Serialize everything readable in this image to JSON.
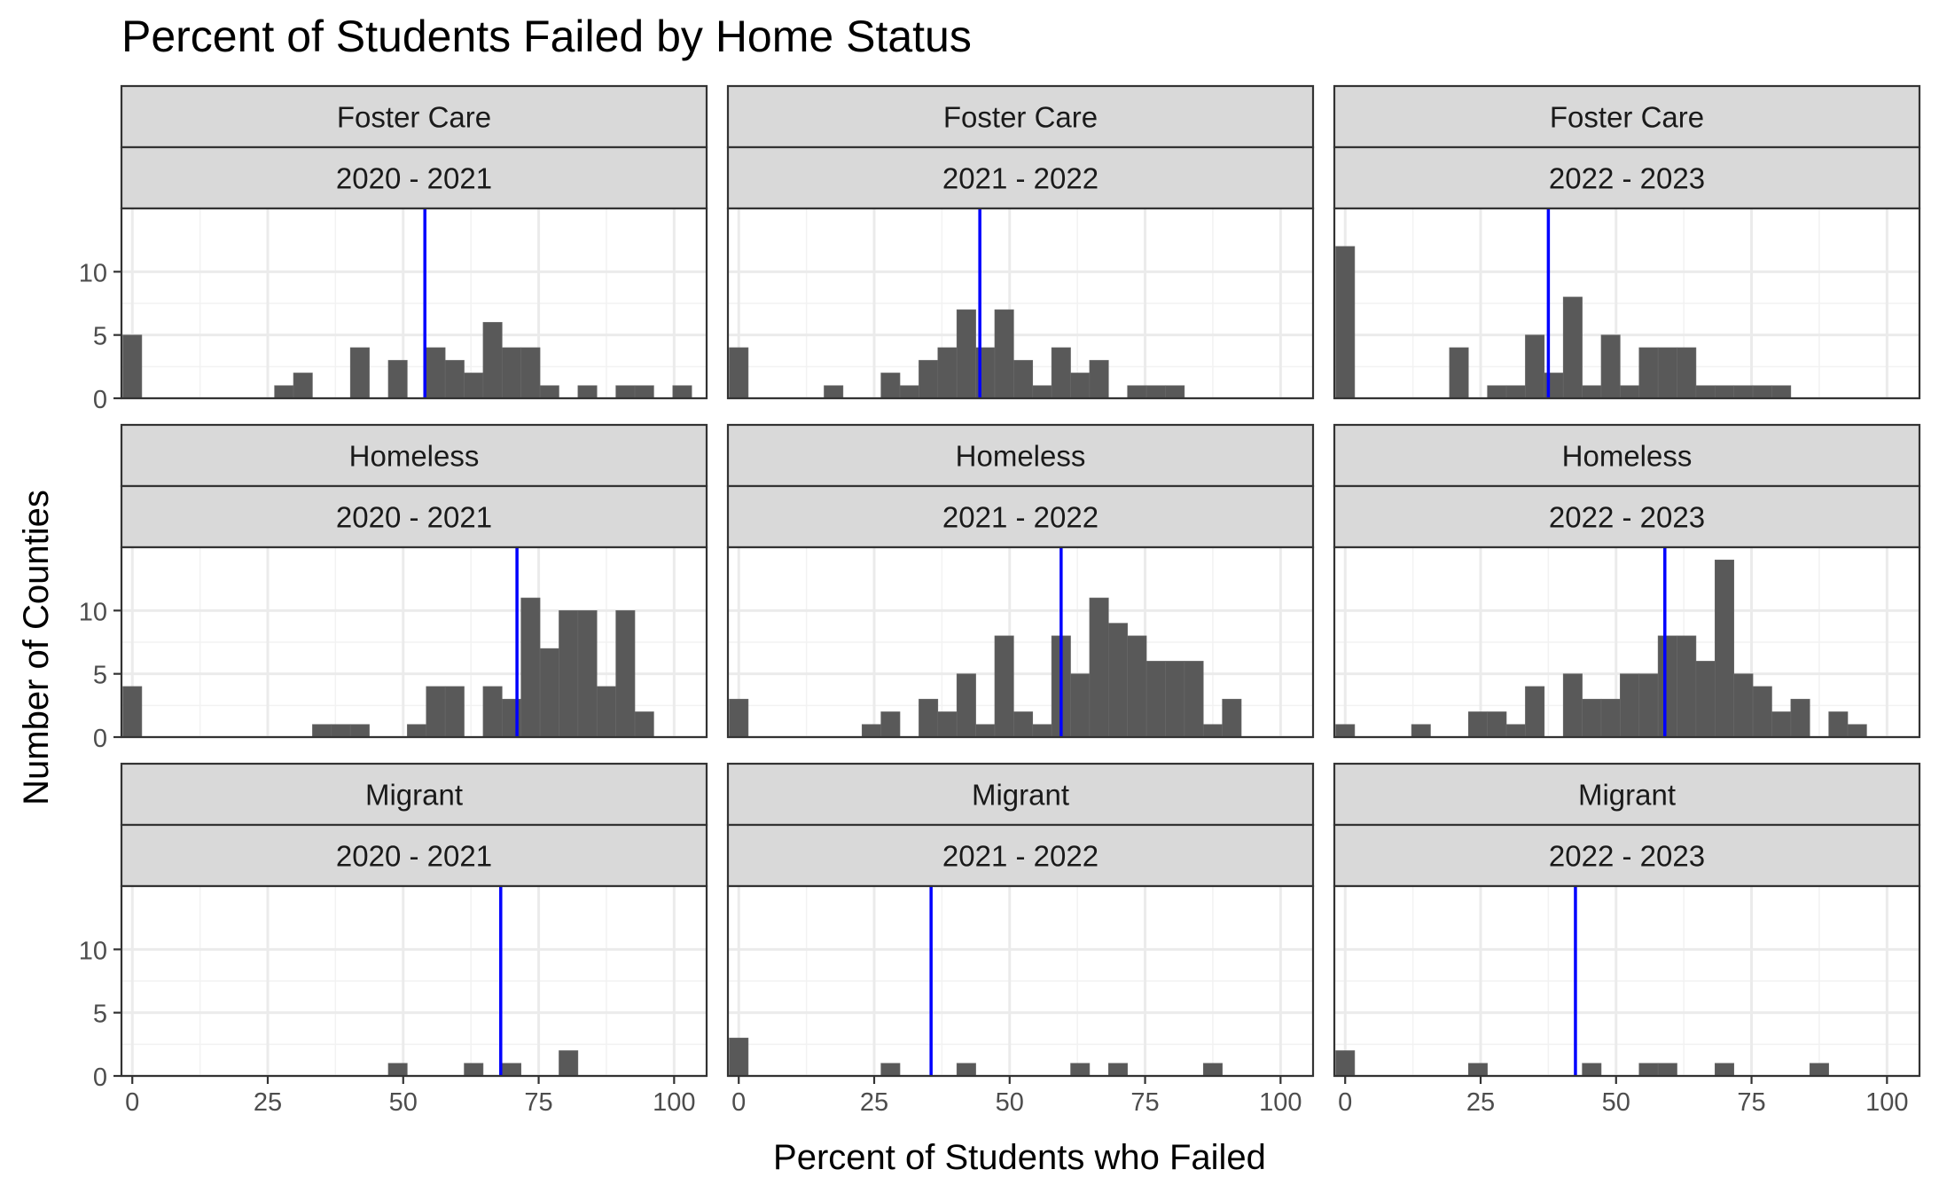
{
  "chart_data": {
    "type": "bar",
    "title": "Percent of Students Failed by Home Status",
    "xlabel": "Percent of Students who Failed",
    "ylabel": "Number of Counties",
    "xlim": [
      -2,
      106
    ],
    "ylim": [
      0,
      15
    ],
    "x_ticks": [
      "0",
      "25",
      "50",
      "75",
      "100"
    ],
    "y_ticks": [
      "0",
      "5",
      "10"
    ],
    "bin_width": 3.5,
    "grid": true,
    "bar_color": "#595959",
    "mean_line_color": "#0000ff",
    "strip_fill": "#d9d9d9",
    "panels": [
      {
        "status": "Foster Care",
        "year": "2020 - 2021",
        "mean": 54,
        "bins": [
          [
            0,
            5
          ],
          [
            28,
            1
          ],
          [
            31.5,
            2
          ],
          [
            42,
            4
          ],
          [
            49,
            3
          ],
          [
            56,
            4
          ],
          [
            59.5,
            3
          ],
          [
            63,
            2
          ],
          [
            66.5,
            6
          ],
          [
            70,
            4
          ],
          [
            73.5,
            4
          ],
          [
            77,
            1
          ],
          [
            84,
            1
          ],
          [
            91,
            1
          ],
          [
            94.5,
            1
          ],
          [
            101.5,
            1
          ]
        ]
      },
      {
        "status": "Foster Care",
        "year": "2021 - 2022",
        "mean": 44.5,
        "bins": [
          [
            0,
            4
          ],
          [
            17.5,
            1
          ],
          [
            28,
            2
          ],
          [
            31.5,
            1
          ],
          [
            35,
            3
          ],
          [
            38.5,
            4
          ],
          [
            42,
            7
          ],
          [
            45.5,
            4
          ],
          [
            49,
            7
          ],
          [
            52.5,
            3
          ],
          [
            56,
            1
          ],
          [
            59.5,
            4
          ],
          [
            63,
            2
          ],
          [
            66.5,
            3
          ],
          [
            73.5,
            1
          ],
          [
            77,
            1
          ],
          [
            80.5,
            1
          ]
        ]
      },
      {
        "status": "Foster Care",
        "year": "2022 - 2023",
        "mean": 37.5,
        "bins": [
          [
            0,
            12
          ],
          [
            21,
            4
          ],
          [
            28,
            1
          ],
          [
            31.5,
            1
          ],
          [
            35,
            5
          ],
          [
            38.5,
            2
          ],
          [
            42,
            8
          ],
          [
            45.5,
            1
          ],
          [
            49,
            5
          ],
          [
            52.5,
            1
          ],
          [
            56,
            4
          ],
          [
            59.5,
            4
          ],
          [
            63,
            4
          ],
          [
            66.5,
            1
          ],
          [
            70,
            1
          ],
          [
            73.5,
            1
          ],
          [
            77,
            1
          ],
          [
            80.5,
            1
          ]
        ]
      },
      {
        "status": "Homeless",
        "year": "2020 - 2021",
        "mean": 71,
        "bins": [
          [
            0,
            4
          ],
          [
            35,
            1
          ],
          [
            38.5,
            1
          ],
          [
            42,
            1
          ],
          [
            52.5,
            1
          ],
          [
            56,
            4
          ],
          [
            59.5,
            4
          ],
          [
            66.5,
            4
          ],
          [
            70,
            3
          ],
          [
            73.5,
            11
          ],
          [
            77,
            7
          ],
          [
            80.5,
            10
          ],
          [
            84,
            10
          ],
          [
            87.5,
            4
          ],
          [
            91,
            10
          ],
          [
            94.5,
            2
          ]
        ]
      },
      {
        "status": "Homeless",
        "year": "2021 - 2022",
        "mean": 59.5,
        "bins": [
          [
            0,
            3
          ],
          [
            24.5,
            1
          ],
          [
            28,
            2
          ],
          [
            35,
            3
          ],
          [
            38.5,
            2
          ],
          [
            42,
            5
          ],
          [
            45.5,
            1
          ],
          [
            49,
            8
          ],
          [
            52.5,
            2
          ],
          [
            56,
            1
          ],
          [
            59.5,
            8
          ],
          [
            63,
            5
          ],
          [
            66.5,
            11
          ],
          [
            70,
            9
          ],
          [
            73.5,
            8
          ],
          [
            77,
            6
          ],
          [
            80.5,
            6
          ],
          [
            84,
            6
          ],
          [
            87.5,
            1
          ],
          [
            91,
            3
          ]
        ]
      },
      {
        "status": "Homeless",
        "year": "2022 - 2023",
        "mean": 59,
        "bins": [
          [
            0,
            1
          ],
          [
            14,
            1
          ],
          [
            24.5,
            2
          ],
          [
            28,
            2
          ],
          [
            31.5,
            1
          ],
          [
            35,
            4
          ],
          [
            42,
            5
          ],
          [
            45.5,
            3
          ],
          [
            49,
            3
          ],
          [
            52.5,
            5
          ],
          [
            56,
            5
          ],
          [
            59.5,
            8
          ],
          [
            63,
            8
          ],
          [
            66.5,
            6
          ],
          [
            70,
            14
          ],
          [
            73.5,
            5
          ],
          [
            77,
            4
          ],
          [
            80.5,
            2
          ],
          [
            84,
            3
          ],
          [
            91,
            2
          ],
          [
            94.5,
            1
          ]
        ]
      },
      {
        "status": "Migrant",
        "year": "2020 - 2021",
        "mean": 68,
        "bins": [
          [
            49,
            1
          ],
          [
            63,
            1
          ],
          [
            70,
            1
          ],
          [
            80.5,
            2
          ]
        ]
      },
      {
        "status": "Migrant",
        "year": "2021 - 2022",
        "mean": 35.5,
        "bins": [
          [
            0,
            3
          ],
          [
            28,
            1
          ],
          [
            42,
            1
          ],
          [
            63,
            1
          ],
          [
            70,
            1
          ],
          [
            87.5,
            1
          ]
        ]
      },
      {
        "status": "Migrant",
        "year": "2022 - 2023",
        "mean": 42.5,
        "bins": [
          [
            0,
            2
          ],
          [
            24.5,
            1
          ],
          [
            45.5,
            1
          ],
          [
            56,
            1
          ],
          [
            59.5,
            1
          ],
          [
            70,
            1
          ],
          [
            87.5,
            1
          ]
        ]
      }
    ]
  }
}
